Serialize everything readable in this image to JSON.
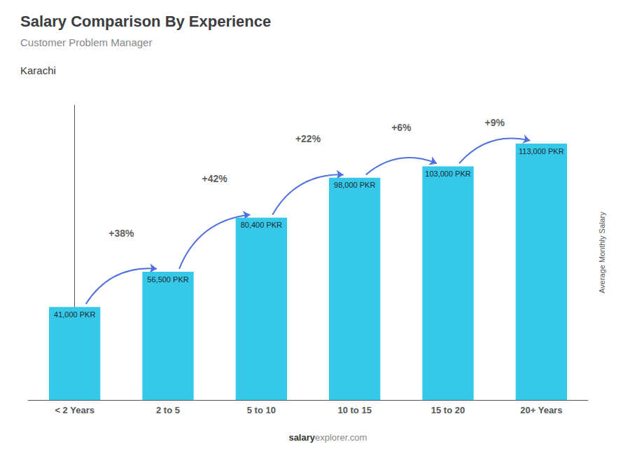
{
  "chart_data": {
    "type": "bar",
    "title": "Salary Comparison By Experience",
    "subtitle": "Customer Problem Manager",
    "city": "Karachi",
    "ylabel": "Average Monthly Salary",
    "categories": [
      "< 2 Years",
      "2 to 5",
      "5 to 10",
      "10 to 15",
      "15 to 20",
      "20+ Years"
    ],
    "values": [
      41000,
      56500,
      80400,
      98000,
      103000,
      113000
    ],
    "value_labels": [
      "41,000 PKR",
      "56,500 PKR",
      "80,400 PKR",
      "98,000 PKR",
      "103,000 PKR",
      "113,000 PKR"
    ],
    "data_labels": true,
    "color": "#35c8e8",
    "ylim": [
      0,
      130000
    ],
    "tick_labels": "x",
    "grid": false,
    "annotations": [
      {
        "text": "+38%",
        "from": "< 2 Years",
        "to": "2 to 5"
      },
      {
        "text": "+42%",
        "from": "2 to 5",
        "to": "5 to 10"
      },
      {
        "text": "+22%",
        "from": "5 to 10",
        "to": "10 to 15"
      },
      {
        "text": "+6%",
        "from": "10 to 15",
        "to": "15 to 20"
      },
      {
        "text": "+9%",
        "from": "15 to 20",
        "to": "20+ Years"
      }
    ],
    "footer": [
      "salary",
      "explorer.com"
    ]
  }
}
